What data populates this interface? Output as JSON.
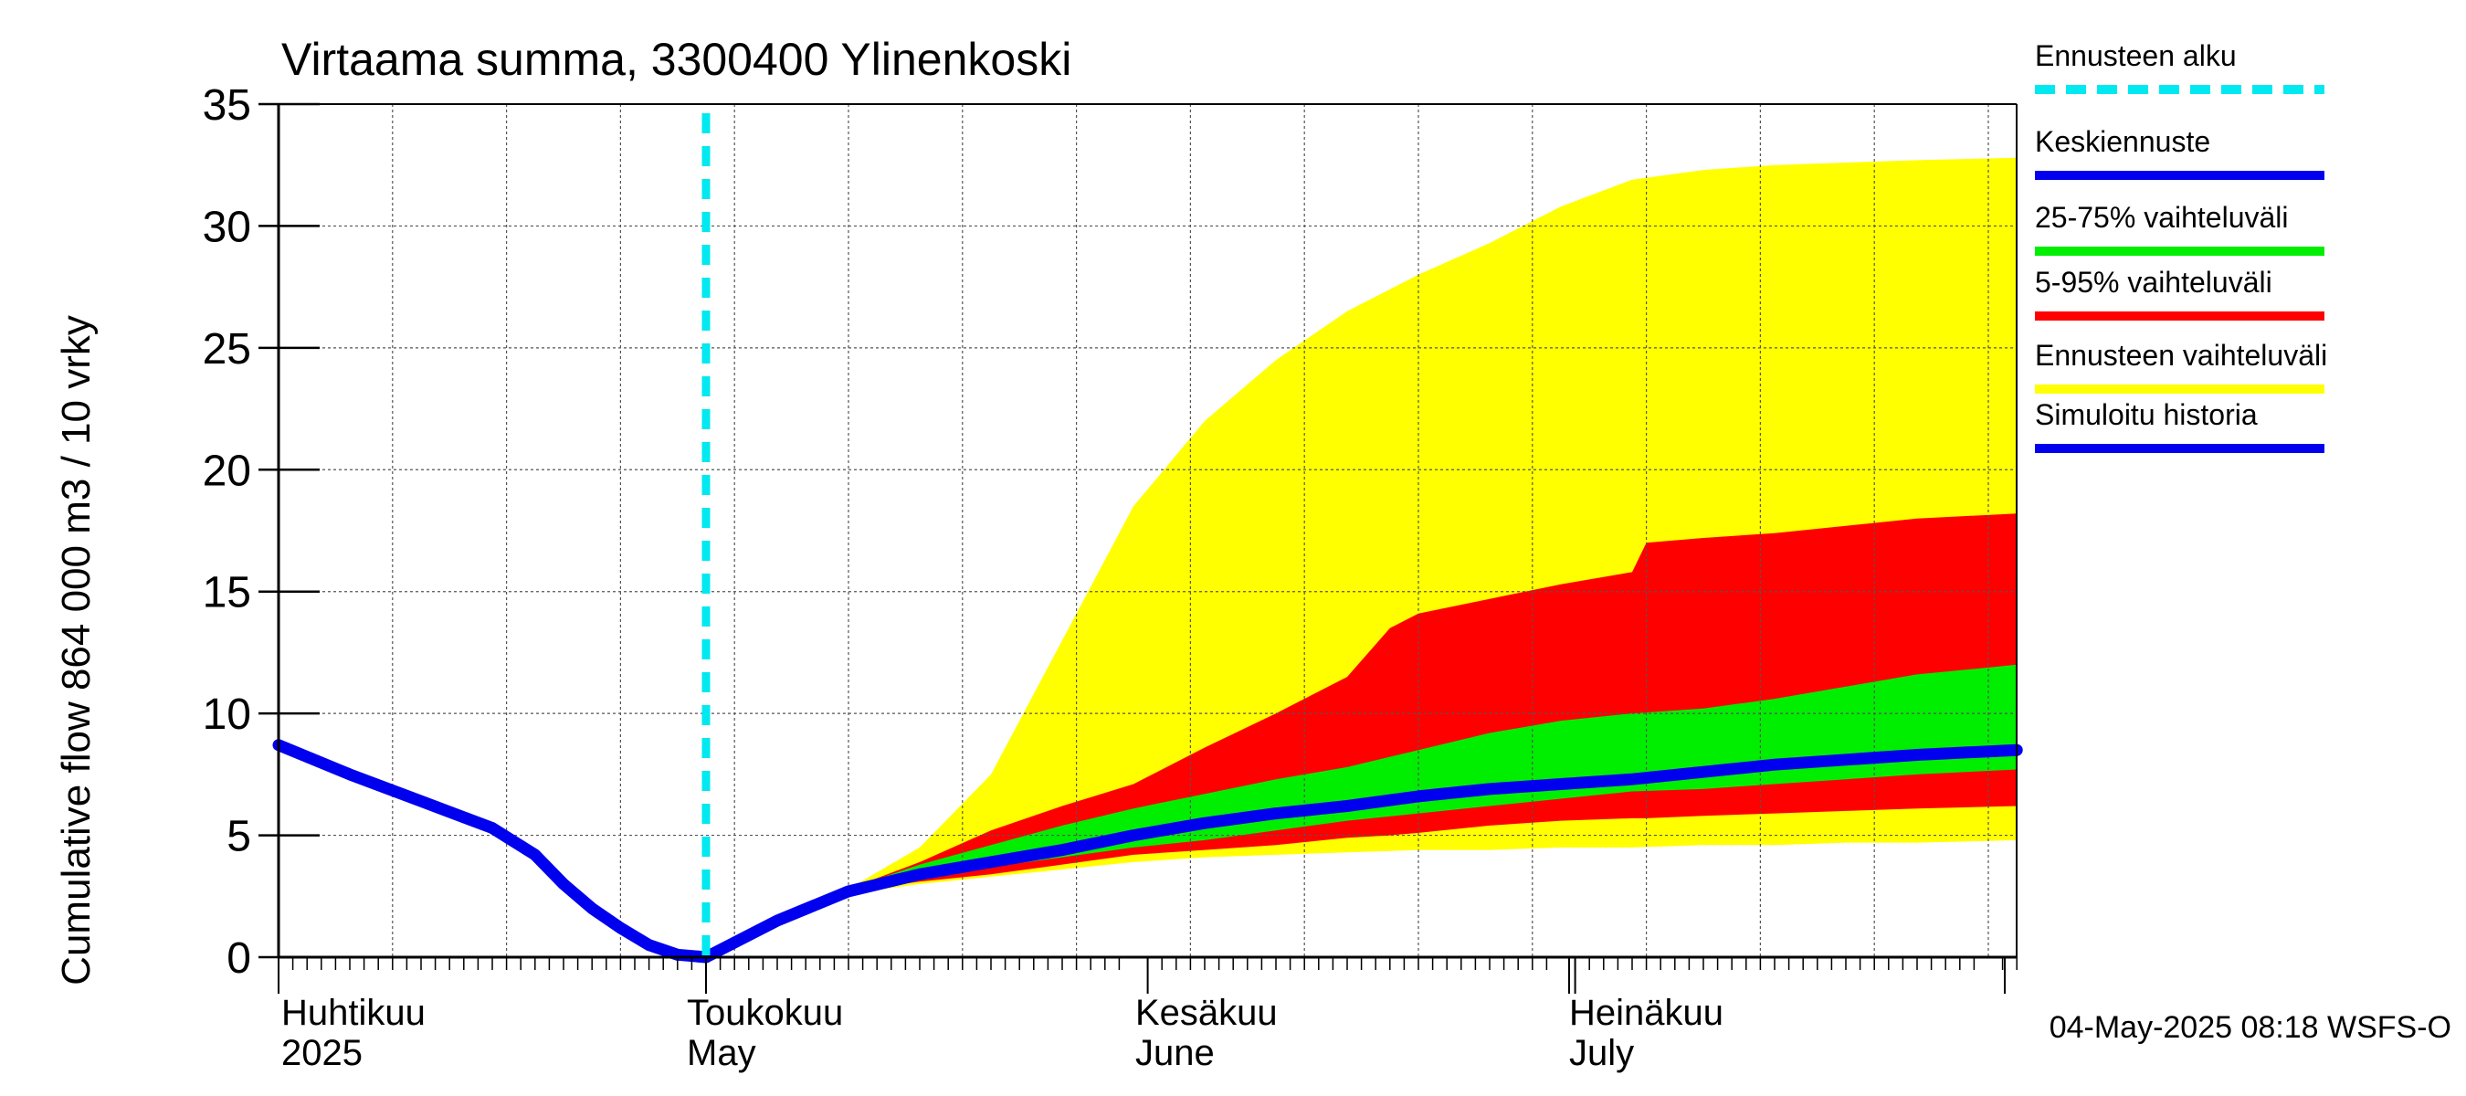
{
  "chart_data": {
    "type": "area",
    "title": "Virtaama summa, 3300400 Ylinenkoski",
    "ylabel": "Cumulative flow    864 000 m3 / 10 vrky",
    "xlabel": "",
    "ylim": [
      0,
      35
    ],
    "xlim": [
      0,
      122
    ],
    "y_ticks": [
      0,
      5,
      10,
      15,
      20,
      25,
      30,
      35
    ],
    "grid": true,
    "legend_position": "right",
    "forecast_start_day": 30,
    "months": [
      {
        "fi": "Huhtikuu",
        "en": "2025",
        "day": 0
      },
      {
        "fi": "Toukokuu",
        "en": "May",
        "day": 30
      },
      {
        "fi": "Kesäkuu",
        "en": "June",
        "day": 61
      },
      {
        "fi": "Heinäkuu",
        "en": "July",
        "day": 91
      }
    ],
    "legend": [
      {
        "label": "Ennusteen alku",
        "color": "#00e8f0",
        "style": "dashed"
      },
      {
        "label": "Keskiennuste",
        "color": "#0000ee",
        "style": "solid"
      },
      {
        "label": "25-75% vaihteluväli",
        "color": "#00ee00",
        "style": "solid"
      },
      {
        "label": "5-95% vaihteluväli",
        "color": "#ff0000",
        "style": "solid"
      },
      {
        "label": "Ennusteen vaihteluväli",
        "color": "#ffff00",
        "style": "solid"
      },
      {
        "label": "Simuloitu historia",
        "color": "#0000ee",
        "style": "solid"
      }
    ],
    "series": [
      {
        "name": "Simuloitu historia",
        "color": "#0000ee",
        "x": [
          0,
          5,
          10,
          15,
          18,
          20,
          22,
          24,
          26,
          28,
          30
        ],
        "y": [
          8.7,
          7.5,
          6.4,
          5.3,
          4.2,
          3.0,
          2.0,
          1.2,
          0.5,
          0.1,
          0.0
        ]
      },
      {
        "name": "Ennusteen vaihteluväli",
        "color": "#ffff00",
        "x": [
          30,
          32,
          35,
          40,
          45,
          50,
          55,
          60,
          65,
          70,
          75,
          80,
          85,
          90,
          95,
          100,
          105,
          110,
          115,
          122
        ],
        "lower": [
          0.0,
          0.6,
          1.5,
          2.6,
          3.0,
          3.3,
          3.6,
          3.9,
          4.1,
          4.2,
          4.3,
          4.4,
          4.4,
          4.5,
          4.5,
          4.6,
          4.6,
          4.7,
          4.7,
          4.8
        ],
        "upper": [
          0.0,
          0.6,
          1.6,
          2.8,
          4.5,
          7.5,
          13.0,
          18.5,
          22.0,
          24.5,
          26.5,
          28.0,
          29.3,
          30.8,
          31.9,
          32.3,
          32.5,
          32.6,
          32.7,
          32.8
        ]
      },
      {
        "name": "5-95% vaihteluväli",
        "color": "#ff0000",
        "x": [
          30,
          32,
          35,
          40,
          45,
          50,
          55,
          60,
          65,
          70,
          75,
          78,
          80,
          85,
          90,
          95,
          96,
          100,
          105,
          110,
          115,
          122
        ],
        "lower": [
          0.0,
          0.6,
          1.5,
          2.7,
          3.1,
          3.4,
          3.8,
          4.2,
          4.4,
          4.6,
          4.9,
          5.0,
          5.1,
          5.4,
          5.6,
          5.7,
          5.7,
          5.8,
          5.9,
          6.0,
          6.1,
          6.2
        ],
        "upper": [
          0.0,
          0.6,
          1.5,
          2.8,
          3.9,
          5.2,
          6.2,
          7.1,
          8.6,
          10.0,
          11.5,
          13.5,
          14.1,
          14.7,
          15.3,
          15.8,
          17.0,
          17.2,
          17.4,
          17.7,
          18.0,
          18.2
        ]
      },
      {
        "name": "25-75% vaihteluväli",
        "color": "#00ee00",
        "x": [
          30,
          32,
          35,
          40,
          45,
          50,
          55,
          60,
          65,
          70,
          75,
          80,
          85,
          90,
          95,
          100,
          105,
          110,
          115,
          122
        ],
        "lower": [
          0.0,
          0.6,
          1.5,
          2.7,
          3.3,
          3.7,
          4.1,
          4.5,
          4.8,
          5.2,
          5.6,
          5.9,
          6.2,
          6.5,
          6.8,
          6.9,
          7.1,
          7.3,
          7.5,
          7.7
        ],
        "upper": [
          0.0,
          0.6,
          1.5,
          2.8,
          3.8,
          4.6,
          5.4,
          6.1,
          6.7,
          7.3,
          7.8,
          8.5,
          9.2,
          9.7,
          10.0,
          10.2,
          10.6,
          11.1,
          11.6,
          12.0
        ]
      },
      {
        "name": "Keskiennuste",
        "color": "#0000ee",
        "x": [
          30,
          32,
          35,
          40,
          45,
          50,
          55,
          60,
          65,
          70,
          75,
          80,
          85,
          90,
          95,
          100,
          105,
          110,
          115,
          122
        ],
        "y": [
          0.0,
          0.6,
          1.5,
          2.7,
          3.4,
          3.9,
          4.4,
          5.0,
          5.5,
          5.9,
          6.2,
          6.6,
          6.9,
          7.1,
          7.3,
          7.6,
          7.9,
          8.1,
          8.3,
          8.5
        ]
      }
    ]
  },
  "footer": "04-May-2025 08:18 WSFS-O"
}
